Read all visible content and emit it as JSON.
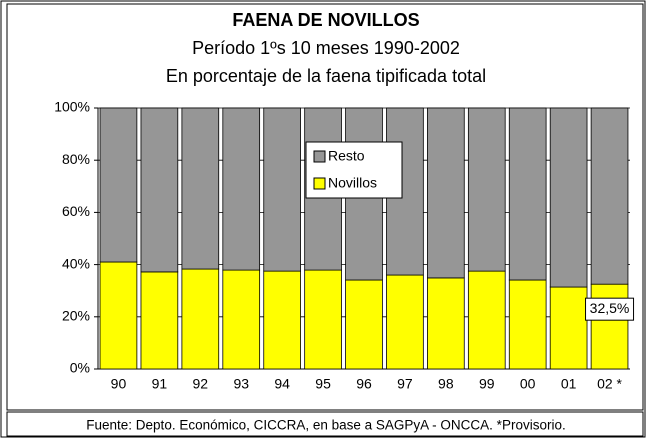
{
  "chart_data": {
    "type": "stacked_bar",
    "title": "FAENA DE NOVILLOS",
    "subtitle": [
      "Período 1ºs 10 meses 1990-2002",
      "En porcentaje de la faena tipificada total"
    ],
    "categories": [
      "90",
      "91",
      "92",
      "93",
      "94",
      "95",
      "96",
      "97",
      "98",
      "99",
      "00",
      "01",
      "02 *"
    ],
    "series": [
      {
        "name": "Novillos",
        "color": "#ffff00",
        "values": [
          41.0,
          37.2,
          38.3,
          37.9,
          37.5,
          37.9,
          34.1,
          36.0,
          34.9,
          37.5,
          34.1,
          31.4,
          32.5
        ],
        "value_labels": [
          null,
          null,
          null,
          null,
          null,
          null,
          null,
          null,
          null,
          null,
          null,
          null,
          "32,5%"
        ]
      },
      {
        "name": "Resto",
        "color": "#969696",
        "values": [
          59.0,
          62.8,
          61.7,
          62.1,
          62.5,
          62.1,
          65.9,
          64.0,
          65.1,
          62.5,
          65.9,
          68.6,
          67.5
        ]
      }
    ],
    "ylim": [
      0,
      100
    ],
    "yticks": [
      {
        "value": 0,
        "label": "0%"
      },
      {
        "value": 20,
        "label": "20%"
      },
      {
        "value": 40,
        "label": "40%"
      },
      {
        "value": 60,
        "label": "60%"
      },
      {
        "value": 80,
        "label": "80%"
      },
      {
        "value": 100,
        "label": "100%"
      }
    ],
    "grid": true,
    "legend": "top",
    "source": "Fuente: Depto. Económico, CICCRA, en base a SAGPyA - ONCCA. *Provisorio."
  }
}
